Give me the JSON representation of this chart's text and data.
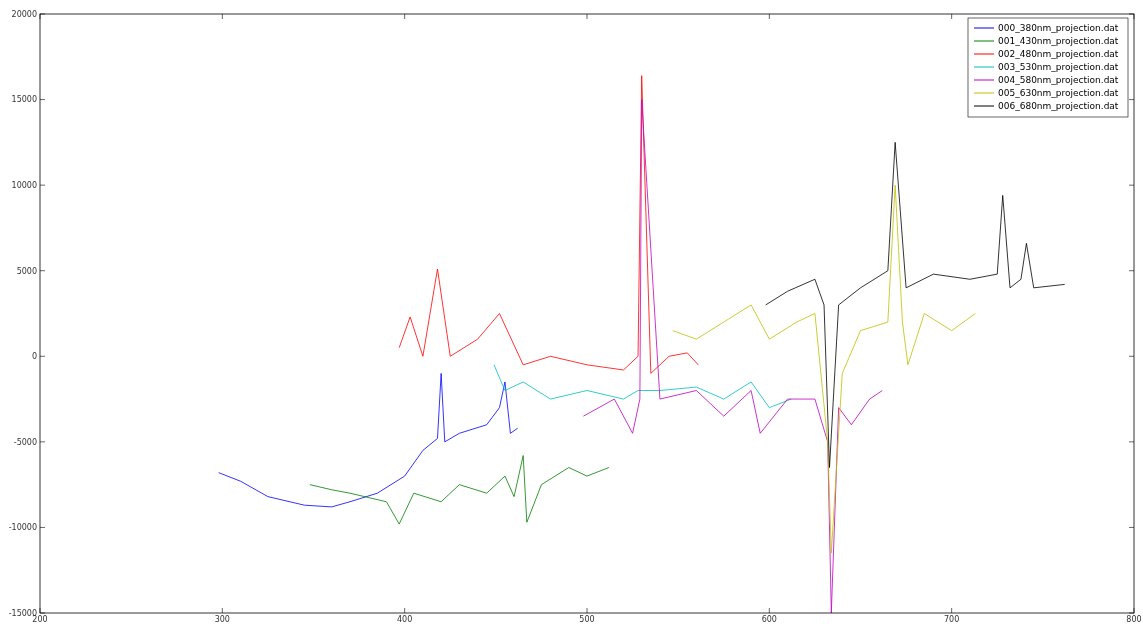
{
  "chart_data": {
    "type": "line",
    "xlim": [
      200,
      800
    ],
    "ylim": [
      -15000,
      20000
    ],
    "xticks": [
      200,
      300,
      400,
      500,
      600,
      700,
      800
    ],
    "yticks": [
      -15000,
      -10000,
      -5000,
      0,
      5000,
      10000,
      15000,
      20000
    ],
    "grid": false,
    "legend": "top right",
    "line_style": "solid",
    "marker": "none",
    "series": [
      {
        "name": "000_380nm_projection.dat",
        "color": "#0000ff",
        "x": [
          298,
          310,
          325,
          345,
          360,
          370,
          385,
          400,
          410,
          418,
          420,
          422,
          430,
          445,
          452,
          455,
          458,
          462
        ],
        "values": [
          -6800,
          -7300,
          -8200,
          -8700,
          -8800,
          -8500,
          -8000,
          -7000,
          -5500,
          -4800,
          -1000,
          -5000,
          -4500,
          -4000,
          -3000,
          -1500,
          -4500,
          -4200
        ]
      },
      {
        "name": "001_430nm_projection.dat",
        "color": "#008000",
        "x": [
          348,
          360,
          370,
          390,
          397,
          405,
          420,
          430,
          445,
          455,
          460,
          465,
          467,
          475,
          490,
          500,
          512
        ],
        "values": [
          -7500,
          -7800,
          -8000,
          -8500,
          -9800,
          -8000,
          -8500,
          -7500,
          -8000,
          -7000,
          -8200,
          -5800,
          -9700,
          -7500,
          -6500,
          -7000,
          -6500
        ]
      },
      {
        "name": "002_480nm_projection.dat",
        "color": "#ff0000",
        "x": [
          397,
          403,
          410,
          418,
          425,
          440,
          452,
          465,
          480,
          500,
          520,
          528,
          530,
          535,
          545,
          555,
          561
        ],
        "values": [
          500,
          2300,
          0,
          5100,
          0,
          1000,
          2500,
          -500,
          0,
          -500,
          -800,
          0,
          16400,
          -1000,
          0,
          200,
          -500
        ]
      },
      {
        "name": "003_530nm_projection.dat",
        "color": "#00bfbf",
        "x": [
          449,
          455,
          465,
          480,
          500,
          520,
          528,
          540,
          560,
          575,
          590,
          600,
          612
        ],
        "values": [
          -500,
          -2000,
          -1500,
          -2500,
          -2000,
          -2500,
          -2000,
          -2000,
          -1800,
          -2500,
          -1500,
          -3000,
          -2500
        ]
      },
      {
        "name": "004_580nm_projection.dat",
        "color": "#bf00bf",
        "x": [
          498,
          515,
          525,
          529,
          530,
          540,
          560,
          575,
          590,
          595,
          610,
          625,
          632,
          634,
          638,
          645,
          655,
          662
        ],
        "values": [
          -3500,
          -2500,
          -4500,
          -2500,
          15000,
          -2500,
          -2000,
          -3500,
          -2000,
          -4500,
          -2500,
          -2500,
          -5000,
          -15000,
          -3000,
          -4000,
          -2500,
          -2000
        ]
      },
      {
        "name": "005_630nm_projection.dat",
        "color": "#bfbf00",
        "x": [
          547,
          560,
          575,
          590,
          600,
          615,
          625,
          632,
          634,
          640,
          650,
          665,
          669,
          673,
          676,
          685,
          700,
          713
        ],
        "values": [
          1500,
          1000,
          2000,
          3000,
          1000,
          2000,
          2500,
          -5000,
          -11500,
          -1000,
          1500,
          2000,
          10000,
          2000,
          -500,
          2500,
          1500,
          2500
        ]
      },
      {
        "name": "006_680nm_projection.dat",
        "color": "#000000",
        "x": [
          598,
          610,
          625,
          630,
          633,
          638,
          650,
          665,
          669,
          675,
          690,
          710,
          725,
          728,
          732,
          738,
          741,
          745,
          762
        ],
        "values": [
          3000,
          3800,
          4500,
          3000,
          -6500,
          3000,
          4000,
          5000,
          12500,
          4000,
          4800,
          4500,
          4800,
          9400,
          4000,
          4500,
          6600,
          4000,
          4200
        ]
      }
    ]
  }
}
